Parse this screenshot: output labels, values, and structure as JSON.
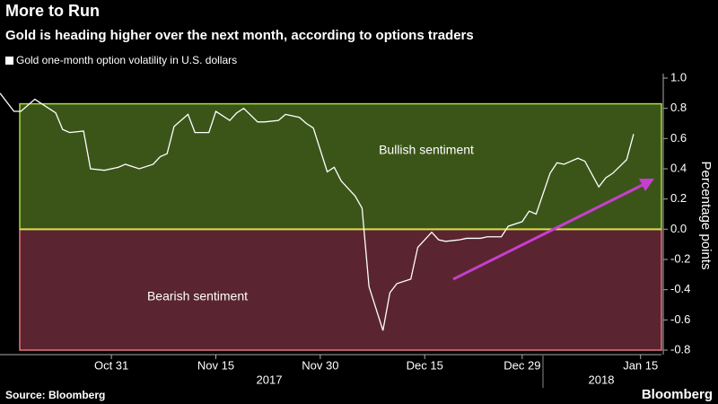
{
  "chart_data": {
    "type": "line",
    "title": "More to Run",
    "subtitle": "Gold is heading higher over the next month, according to options traders",
    "y_label": "Percentage points",
    "source": "Source: Bloomberg",
    "brand": "Bloomberg",
    "x": [
      "2017-10-15",
      "2017-10-17",
      "2017-10-18",
      "2017-10-20",
      "2017-10-22",
      "2017-10-23",
      "2017-10-24",
      "2017-10-25",
      "2017-10-27",
      "2017-10-28",
      "2017-10-30",
      "2017-11-01",
      "2017-11-02",
      "2017-11-04",
      "2017-11-06",
      "2017-11-07",
      "2017-11-08",
      "2017-11-09",
      "2017-11-11",
      "2017-11-12",
      "2017-11-14",
      "2017-11-15",
      "2017-11-17",
      "2017-11-18",
      "2017-11-19",
      "2017-11-21",
      "2017-11-22",
      "2017-11-24",
      "2017-11-25",
      "2017-11-27",
      "2017-11-28",
      "2017-11-29",
      "2017-12-01",
      "2017-12-02",
      "2017-12-03",
      "2017-12-05",
      "2017-12-06",
      "2017-12-07",
      "2017-12-09",
      "2017-12-10",
      "2017-12-11",
      "2017-12-13",
      "2017-12-14",
      "2017-12-16",
      "2017-12-17",
      "2017-12-18",
      "2017-12-20",
      "2017-12-21",
      "2017-12-23",
      "2017-12-24",
      "2017-12-26",
      "2017-12-27",
      "2017-12-29",
      "2017-12-30",
      "2017-12-31",
      "2018-01-02",
      "2018-01-03",
      "2018-01-04",
      "2018-01-06",
      "2018-01-07",
      "2018-01-09",
      "2018-01-10",
      "2018-01-11",
      "2018-01-13",
      "2018-01-14"
    ],
    "series": [
      {
        "name": "Gold one-month option volatility in U.S. dollars",
        "color": "#ffffff",
        "values": [
          0.9,
          0.78,
          0.78,
          0.86,
          0.8,
          0.77,
          0.66,
          0.64,
          0.65,
          0.4,
          0.39,
          0.41,
          0.43,
          0.4,
          0.43,
          0.48,
          0.5,
          0.68,
          0.76,
          0.64,
          0.64,
          0.78,
          0.72,
          0.77,
          0.8,
          0.71,
          0.71,
          0.72,
          0.76,
          0.74,
          0.7,
          0.67,
          0.38,
          0.41,
          0.32,
          0.22,
          0.14,
          -0.38,
          -0.67,
          -0.42,
          -0.36,
          -0.33,
          -0.12,
          -0.02,
          -0.07,
          -0.08,
          -0.07,
          -0.06,
          -0.06,
          -0.05,
          -0.05,
          0.02,
          0.05,
          0.12,
          0.1,
          0.37,
          0.44,
          0.43,
          0.47,
          0.45,
          0.28,
          0.34,
          0.37,
          0.46,
          0.63
        ]
      }
    ],
    "zones": [
      {
        "label": "Bullish sentiment",
        "range": [
          0,
          0.83
        ],
        "color": "#3b5519",
        "border": "#a6dc3c"
      },
      {
        "label": "Bearish sentiment",
        "range": [
          -0.8,
          0
        ],
        "color": "#5a2530",
        "border": "#e8737f"
      }
    ],
    "xlim": [
      "2017-10-15",
      "2018-01-18"
    ],
    "xticks": [
      {
        "value": "2017-10-31",
        "label": "Oct 31"
      },
      {
        "value": "2017-11-15",
        "label": "Nov 15"
      },
      {
        "value": "2017-11-30",
        "label": "Nov 30"
      },
      {
        "value": "2017-12-15",
        "label": "Dec 15"
      },
      {
        "value": "2017-12-29",
        "label": "Dec 29"
      },
      {
        "value": "2018-01-15",
        "label": "Jan 15"
      }
    ],
    "years": [
      "2017",
      "2018"
    ],
    "ylim": [
      -0.8,
      1.0
    ],
    "yticks": [
      {
        "value": 1,
        "label": "1.0"
      },
      0.8,
      0.6,
      0.4,
      0.2,
      {
        "value": 0,
        "label": "0.0"
      },
      -0.2,
      -0.4,
      -0.6,
      -0.8
    ]
  }
}
